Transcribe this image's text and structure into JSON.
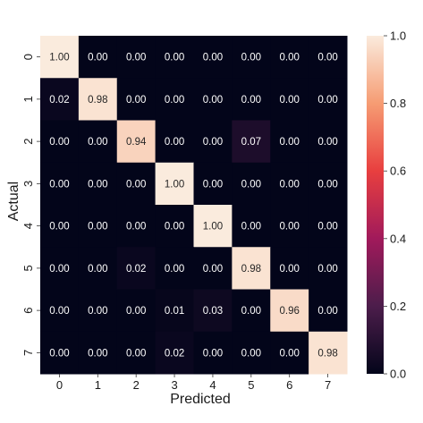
{
  "chart_data": {
    "type": "heatmap",
    "xlabel": "Predicted",
    "ylabel": "Actual",
    "x_categories": [
      "0",
      "1",
      "2",
      "3",
      "4",
      "5",
      "6",
      "7"
    ],
    "y_categories": [
      "0",
      "1",
      "2",
      "3",
      "4",
      "5",
      "6",
      "7"
    ],
    "values": [
      [
        1.0,
        0.0,
        0.0,
        0.0,
        0.0,
        0.0,
        0.0,
        0.0
      ],
      [
        0.02,
        0.98,
        0.0,
        0.0,
        0.0,
        0.0,
        0.0,
        0.0
      ],
      [
        0.0,
        0.0,
        0.94,
        0.0,
        0.0,
        0.07,
        0.0,
        0.0
      ],
      [
        0.0,
        0.0,
        0.0,
        1.0,
        0.0,
        0.0,
        0.0,
        0.0
      ],
      [
        0.0,
        0.0,
        0.0,
        0.0,
        1.0,
        0.0,
        0.0,
        0.0
      ],
      [
        0.0,
        0.0,
        0.02,
        0.0,
        0.0,
        0.98,
        0.0,
        0.0
      ],
      [
        0.0,
        0.0,
        0.0,
        0.01,
        0.03,
        0.0,
        0.96,
        0.0
      ],
      [
        0.0,
        0.0,
        0.0,
        0.02,
        0.0,
        0.0,
        0.0,
        0.98
      ]
    ],
    "value_format": "0.00",
    "colorbar": {
      "range": [
        0.0,
        1.0
      ],
      "ticks": [
        0.0,
        0.2,
        0.4,
        0.6,
        0.8,
        1.0
      ],
      "tick_labels": [
        "0.0",
        "0.2",
        "0.4",
        "0.6",
        "0.8",
        "1.0"
      ],
      "colormap": "rocket",
      "stops": [
        "#03051a",
        "#4c1d4b",
        "#a11a5b",
        "#e83f3f",
        "#f69c73",
        "#faebdd"
      ]
    },
    "grid": false
  }
}
